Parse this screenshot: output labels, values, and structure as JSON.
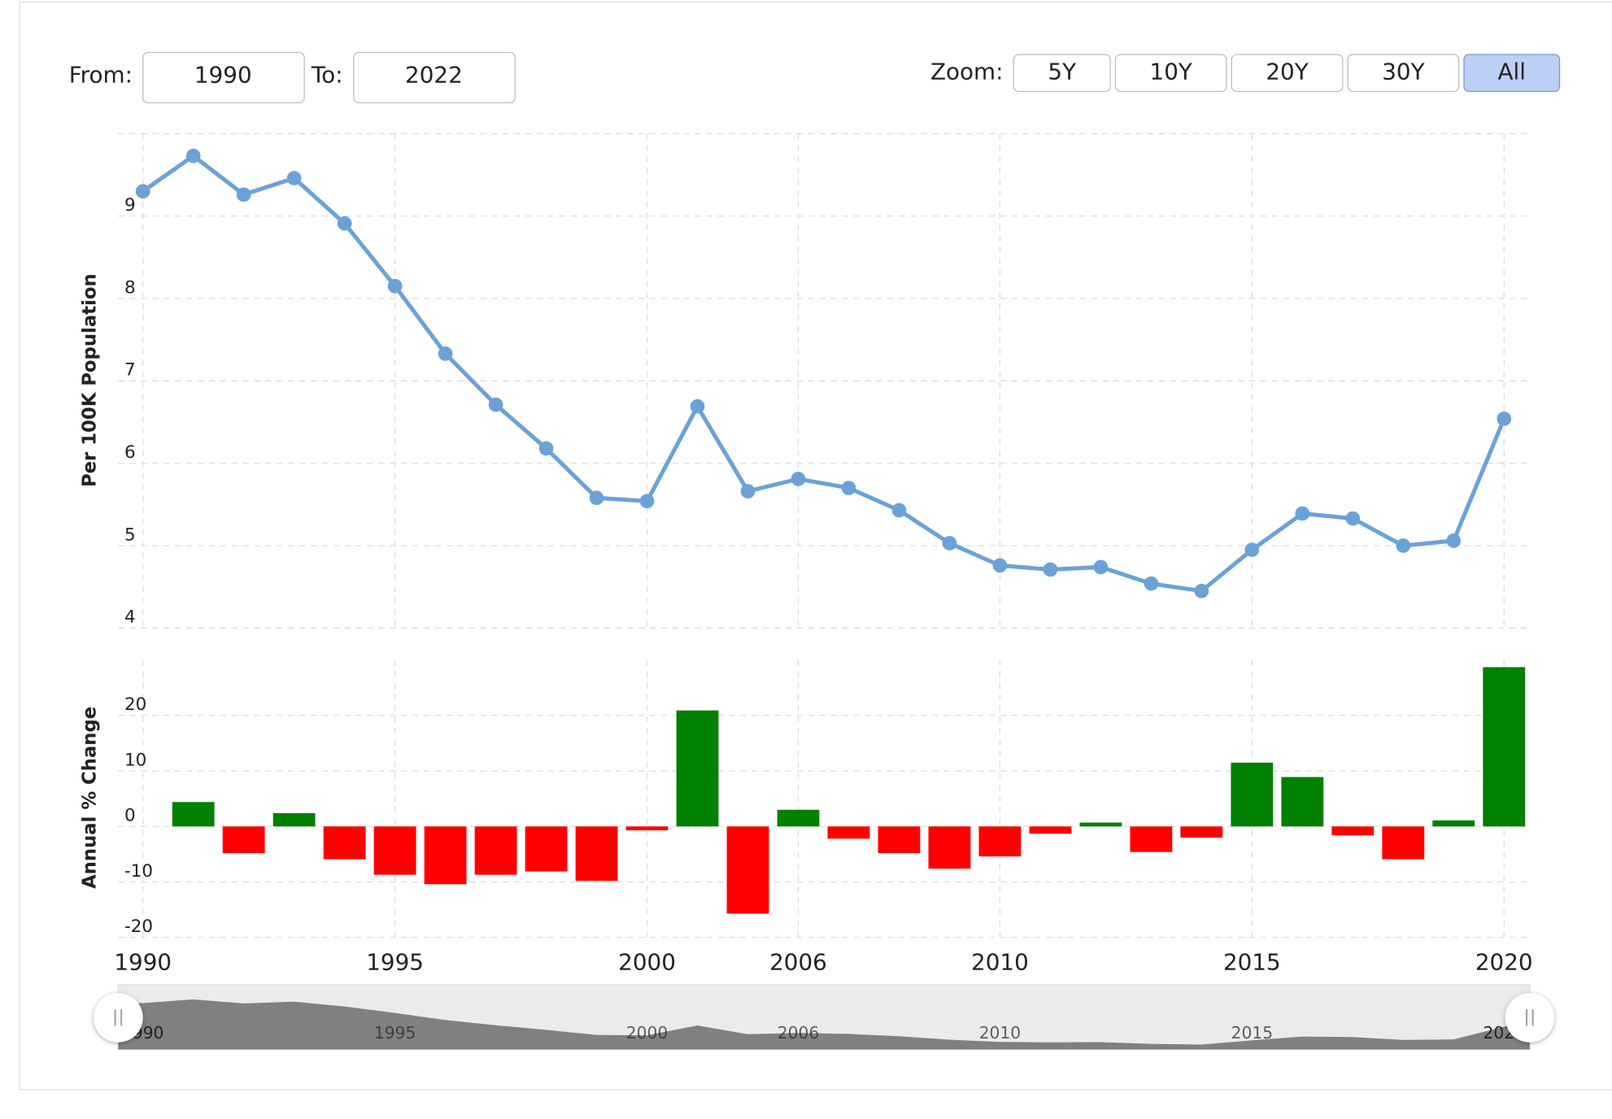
{
  "ui": {
    "from_label": "From:",
    "from_value": "1990",
    "to_label": "To:",
    "to_value": "2022",
    "zoom_label": "Zoom:",
    "zoom_buttons": [
      "5Y",
      "10Y",
      "20Y",
      "30Y",
      "All"
    ],
    "zoom_selected": "All"
  },
  "chart_data": [
    {
      "type": "line",
      "ylabel": "Per 100K Population",
      "color": "#6aa2d8",
      "categories": [
        1990,
        null,
        null,
        null,
        null,
        1995,
        null,
        null,
        null,
        null,
        2000,
        null,
        null,
        2006,
        null,
        null,
        null,
        2010,
        null,
        null,
        null,
        null,
        2015,
        null,
        null,
        null,
        null,
        2020
      ],
      "values": [
        9.3,
        9.73,
        9.26,
        9.46,
        8.91,
        8.15,
        7.33,
        6.71,
        6.18,
        5.58,
        5.54,
        6.69,
        5.66,
        5.81,
        5.7,
        5.43,
        5.03,
        4.76,
        4.71,
        4.74,
        4.54,
        4.45,
        4.95,
        5.39,
        5.33,
        5.0,
        5.06,
        6.54
      ],
      "ylim": [
        4,
        10
      ],
      "yticks": [
        4,
        5,
        6,
        7,
        8,
        9
      ],
      "grid": true
    },
    {
      "type": "bar",
      "ylabel": "Annual % Change",
      "positive_color": "#008000",
      "negative_color": "#ff0000",
      "values": [
        null,
        4.4,
        -4.8,
        2.4,
        -5.9,
        -8.7,
        -10.4,
        -8.7,
        -8.1,
        -9.8,
        -0.7,
        20.9,
        -15.7,
        3.0,
        -2.2,
        -4.8,
        -7.6,
        -5.4,
        -1.3,
        0.7,
        -4.6,
        -2.0,
        11.5,
        8.9,
        -1.6,
        -5.9,
        1.1,
        28.7
      ],
      "ylim": [
        -20,
        30
      ],
      "yticks": [
        -20,
        -10,
        0,
        10,
        20
      ],
      "grid": true
    }
  ]
}
